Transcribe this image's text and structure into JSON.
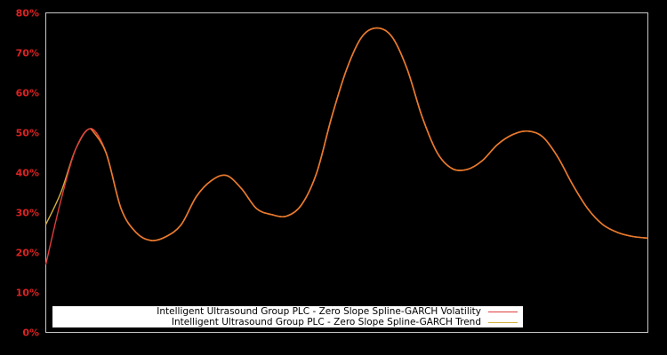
{
  "chart_data": {
    "type": "line",
    "title": "",
    "xlabel": "",
    "ylabel": "",
    "ylim": [
      0,
      80
    ],
    "y_ticks": [
      "0%",
      "10%",
      "20%",
      "30%",
      "40%",
      "50%",
      "60%",
      "70%",
      "80%"
    ],
    "x_ticks": [],
    "grid": false,
    "legend_position": "bottom-left inside",
    "x": [
      0,
      1,
      2,
      3,
      4,
      5,
      6,
      7,
      8,
      9,
      10,
      11,
      12,
      13,
      14,
      15,
      16,
      17,
      18,
      19,
      20,
      21,
      22,
      23,
      24,
      25,
      26,
      27,
      28,
      29,
      30,
      31,
      32,
      33,
      34,
      35,
      36,
      37,
      38,
      39,
      40
    ],
    "series": [
      {
        "name": "Intelligent Ultrasound Group PLC - Zero Slope Spline-GARCH Volatility",
        "color": "#e03c3c",
        "values": [
          17,
          33,
          46,
          51,
          45,
          31,
          25,
          23,
          24,
          27,
          34,
          38,
          39.3,
          36,
          31,
          29.5,
          29.1,
          32,
          40,
          54,
          66,
          74,
          76.2,
          74,
          66,
          54,
          45,
          41,
          40.8,
          43,
          47,
          49.5,
          50.4,
          49,
          44,
          37,
          31,
          27,
          25,
          24,
          23.6
        ]
      },
      {
        "name": "Intelligent Ultrasound Group PLC - Zero Slope Spline-GARCH Trend",
        "color": "#d4b040",
        "values": [
          27,
          35,
          46,
          51,
          45,
          31,
          25,
          23,
          24,
          27,
          34,
          38,
          39.3,
          36,
          31,
          29.5,
          29.1,
          32,
          40,
          54,
          66,
          74,
          76.2,
          74,
          66,
          54,
          45,
          41,
          40.8,
          43,
          47,
          49.5,
          50.4,
          49,
          44,
          37,
          31,
          27,
          25,
          24,
          23.6
        ]
      }
    ],
    "plot_line_color": "#e87a2c"
  },
  "legend": {
    "items": [
      {
        "label": "Intelligent Ultrasound Group PLC - Zero Slope Spline-GARCH Volatility",
        "color": "#e03c3c"
      },
      {
        "label": "Intelligent Ultrasound Group PLC - Zero Slope Spline-GARCH Trend",
        "color": "#d4b040"
      }
    ]
  }
}
